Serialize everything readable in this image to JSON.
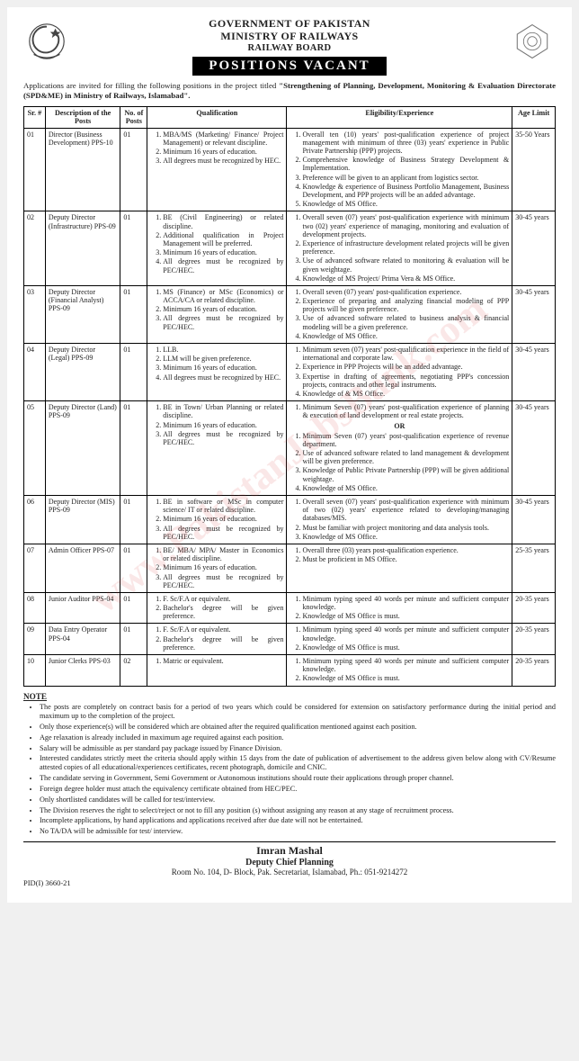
{
  "watermark": "www.PakistanJobsBank.com",
  "header": {
    "line1": "GOVERNMENT OF PAKISTAN",
    "line2": "MINISTRY OF RAILWAYS",
    "line3": "RAILWAY BOARD",
    "title": "POSITIONS VACANT"
  },
  "intro_prefix": "Applications are invited for filling the following positions in the project titled ",
  "intro_bold": "\"Strengthening of Planning, Development, Monitoring & Evaluation Directorate (SPD&ME) in Ministry of Railways, Islamabad\".",
  "table": {
    "headers": {
      "sr": "Sr. #",
      "desc": "Description of the Posts",
      "no": "No. of Posts",
      "qual": "Qualification",
      "elig": "Eligibility/Experience",
      "age": "Age Limit"
    },
    "rows": [
      {
        "sr": "01",
        "desc": "Director (Business Development) PPS-10",
        "no": "01",
        "qual": [
          "MBA/MS (Marketing/ Finance/ Project Management) or relevant discipline.",
          "Minimum 16 years of education.",
          "All degrees must be recognized by HEC."
        ],
        "elig": [
          "Overall ten (10) years' post-qualification experience of project management with minimum of three (03) years' experience in Public Private Partnership (PPP) projects.",
          "Comprehensive knowledge of Business Strategy Development & Implementation.",
          "Preference will be given to an applicant from logistics sector.",
          "Knowledge & experience of Business Portfolio Management, Business Development, and PPP projects will be an added advantage.",
          "Knowledge of MS Office."
        ],
        "age": "35-50 Years"
      },
      {
        "sr": "02",
        "desc": "Deputy Director (Infrastructure) PPS-09",
        "no": "01",
        "qual": [
          "BE (Civil Engineering) or related discipline.",
          "Additional qualification in Project Management will be preferred.",
          "Minimum 16 years of education.",
          "All degrees must be recognized by PEC/HEC."
        ],
        "elig": [
          "Overall seven (07) years' post-qualification experience with minimum two (02) years' experience of managing, monitoring and evaluation of development projects.",
          "Experience of infrastructure development related projects will be given preference.",
          "Use of advanced software related to monitoring & evaluation will be given weightage.",
          "Knowledge of MS Project/ Prima Vera & MS Office."
        ],
        "age": "30-45 years"
      },
      {
        "sr": "03",
        "desc": "Deputy Director (Financial Analyst) PPS-09",
        "no": "01",
        "qual": [
          "MS (Finance) or MSc (Economics) or ACCA/CA or related discipline.",
          "Minimum 16 years of education.",
          "All degrees must be recognized by PEC/HEC."
        ],
        "elig": [
          "Overall seven (07) years' post-qualification experience.",
          "Experience of preparing and analyzing financial modeling of PPP projects will be given preference.",
          "Use of advanced software related to business analysis & financial modeling will be a given preference.",
          "Knowledge of MS Office."
        ],
        "age": "30-45 years"
      },
      {
        "sr": "04",
        "desc": "Deputy Director (Legal) PPS-09",
        "no": "01",
        "qual": [
          "LLB.",
          "LLM will be given preference.",
          "Minimum 16 years of education.",
          "All degrees must be recognized by HEC."
        ],
        "elig": [
          "Minimum seven (07) years' post-qualification experience in the field of international and corporate law.",
          "Experience in PPP Projects will be an added advantage.",
          "Expertise in drafting of agreements, negotiating PPP's concession projects, contracts and other legal instruments.",
          "Knowledge of & MS Office."
        ],
        "age": "30-45 years"
      },
      {
        "sr": "05",
        "desc": "Deputy Director (Land) PPS-09",
        "no": "01",
        "qual": [
          "BE in Town/ Urban Planning or related discipline.",
          "Minimum 16 years of education.",
          "All degrees must be recognized by PEC/HEC."
        ],
        "elig_pre": [
          "Minimum Seven (07) years' post-qualification experience of planning & execution of land development or real estate projects."
        ],
        "elig_or": "OR",
        "elig_post": [
          "Minimum Seven (07) years' post-qualification experience of revenue department.",
          "Use of advanced software related to land management & development will be given preference.",
          "Knowledge of Public Private Partnership (PPP) will be given additional weightage.",
          "Knowledge of MS Office."
        ],
        "age": "30-45 years"
      },
      {
        "sr": "06",
        "desc": "Deputy Director (MIS) PPS-09",
        "no": "01",
        "qual": [
          "BE in software or MSc in computer science/ IT or related discipline.",
          "Minimum 16 years of education.",
          "All degrees must be recognized by PEC/HEC."
        ],
        "elig": [
          "Overall seven (07) years' post-qualification experience with minimum of two (02) years' experience related to developing/managing databases/MIS.",
          "Must be familiar with project monitoring and data analysis tools.",
          "Knowledge of MS Office."
        ],
        "age": "30-45 years"
      },
      {
        "sr": "07",
        "desc": "Admin Officer PPS-07",
        "no": "01",
        "qual": [
          "BE/ MBA/ MPA/ Master in Economics or related discipline.",
          "Minimum 16 years of education.",
          "All degrees must be recognized by PEC/HEC."
        ],
        "elig": [
          "Overall three (03) years post-qualification experience.",
          "Must be proficient in MS Office."
        ],
        "age": "25-35 years"
      },
      {
        "sr": "08",
        "desc": "Junior Auditor PPS-04",
        "no": "01",
        "qual": [
          "F. Sc/F.A or equivalent.",
          "Bachelor's degree will be given preference."
        ],
        "elig": [
          "Minimum typing speed 40 words per minute and sufficient computer knowledge.",
          "Knowledge of MS Office is must."
        ],
        "age": "20-35 years"
      },
      {
        "sr": "09",
        "desc": "Data Entry Operator PPS-04",
        "no": "01",
        "qual": [
          "F. Sc/F.A or equivalent.",
          "Bachelor's degree will be given preference."
        ],
        "elig": [
          "Minimum typing speed 40 words per minute and sufficient computer knowledge.",
          "Knowledge of MS Office is must."
        ],
        "age": "20-35 years"
      },
      {
        "sr": "10",
        "desc": "Junior Clerks PPS-03",
        "no": "02",
        "qual": [
          "Matric or equivalent."
        ],
        "elig": [
          "Minimum typing speed 40 words per minute and sufficient computer knowledge.",
          "Knowledge of MS Office is must."
        ],
        "age": "20-35 years"
      }
    ]
  },
  "note_head": "NOTE",
  "notes": [
    "The posts are completely on contract basis for a period of two years which could be considered for extension on satisfactory performance during the initial period and maximum up to the completion of the project.",
    "Only those experience(s) will be considered which are obtained after the required qualification mentioned against each position.",
    "Age relaxation is already included in maximum age required against each position.",
    "Salary will be admissible as per standard pay package issued by Finance Division.",
    "Interested candidates strictly meet the criteria should apply within 15 days from the date of publication of advertisement to the address given below along with CV/Resume attested copies of all educational/experiences certificates, recent photograph, domicile and CNIC.",
    "The candidate serving in Government, Semi Government or Autonomous institutions should route their applications through proper channel.",
    "Foreign degree holder must attach the equivalency certificate obtained from HEC/PEC.",
    "Only shortlisted candidates will be called for test/interview.",
    "The Division reserves the right to select/reject or not to fill any position (s) without assigning any reason at any stage of recruitment process.",
    "Incomplete applications, by hand applications and applications received after due date will not be entertained.",
    "No TA/DA will be admissible for test/ interview."
  ],
  "signatory": {
    "name": "Imran Mashal",
    "title": "Deputy Chief Planning",
    "addr": "Room No. 104, D- Block, Pak. Secretariat, Islamabad, Ph.: 051-9214272"
  },
  "pid": "PID(I) 3660-21"
}
